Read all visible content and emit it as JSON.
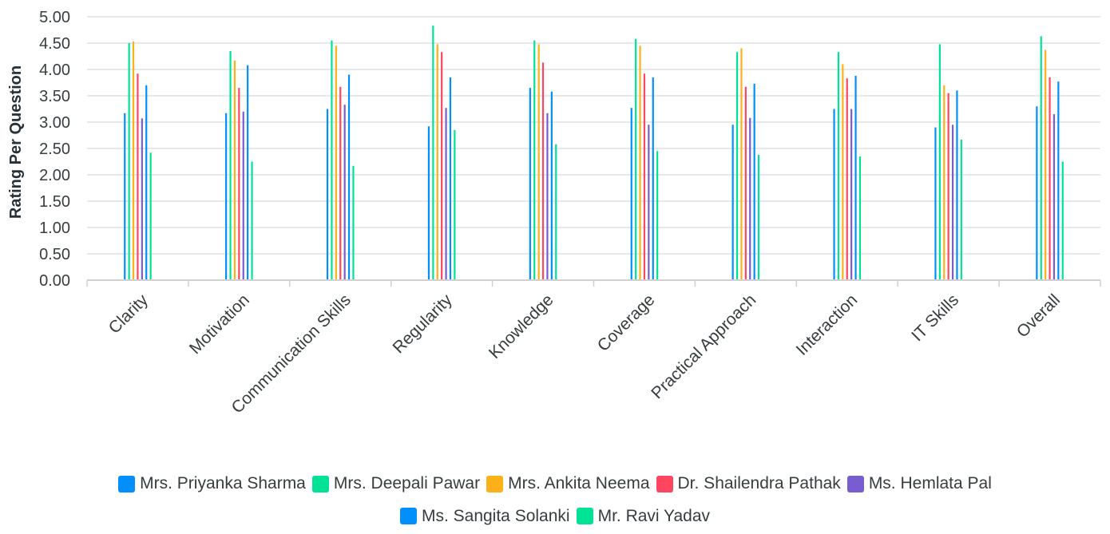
{
  "chart_data": {
    "type": "bar",
    "ylabel": "Rating Per Question",
    "xlabel": "",
    "ylim": [
      0,
      5
    ],
    "yticks": [
      "0.00",
      "0.50",
      "1.00",
      "1.50",
      "2.00",
      "2.50",
      "3.00",
      "3.50",
      "4.00",
      "4.50",
      "5.00"
    ],
    "grid": true,
    "legend_position": "bottom",
    "categories": [
      "Clarity",
      "Motivation",
      "Communication Skills",
      "Regularity",
      "Knowledge",
      "Coverage",
      "Practical Approach",
      "Interaction",
      "IT Skills",
      "Overall"
    ],
    "series": [
      {
        "name": "Mrs. Priyanka Sharma",
        "color": "#008ffb",
        "values": [
          3.17,
          3.17,
          3.25,
          2.92,
          3.65,
          3.27,
          2.95,
          3.25,
          2.9,
          3.3
        ]
      },
      {
        "name": "Mrs. Deepali Pawar",
        "color": "#00e396",
        "values": [
          4.5,
          4.35,
          4.55,
          4.83,
          4.55,
          4.58,
          4.33,
          4.33,
          4.48,
          4.63
        ]
      },
      {
        "name": "Mrs. Ankita Neema",
        "color": "#feb019",
        "values": [
          4.53,
          4.17,
          4.45,
          4.48,
          4.48,
          4.45,
          4.4,
          4.1,
          3.7,
          4.37
        ]
      },
      {
        "name": "Dr. Shailendra Pathak",
        "color": "#ff4560",
        "values": [
          3.92,
          3.65,
          3.67,
          4.33,
          4.13,
          3.92,
          3.67,
          3.83,
          3.55,
          3.85
        ]
      },
      {
        "name": "Ms. Hemlata Pal",
        "color": "#775dd0",
        "values": [
          3.07,
          3.2,
          3.33,
          3.27,
          3.17,
          2.95,
          3.08,
          3.25,
          2.95,
          3.15
        ]
      },
      {
        "name": "Ms. Sangita Solanki",
        "color": "#008ffb",
        "values": [
          3.7,
          4.08,
          3.9,
          3.85,
          3.58,
          3.85,
          3.73,
          3.88,
          3.6,
          3.77
        ]
      },
      {
        "name": "Mr. Ravi Yadav",
        "color": "#00e396",
        "values": [
          2.42,
          2.25,
          2.17,
          2.85,
          2.58,
          2.45,
          2.38,
          2.35,
          2.67,
          2.25
        ]
      }
    ]
  }
}
